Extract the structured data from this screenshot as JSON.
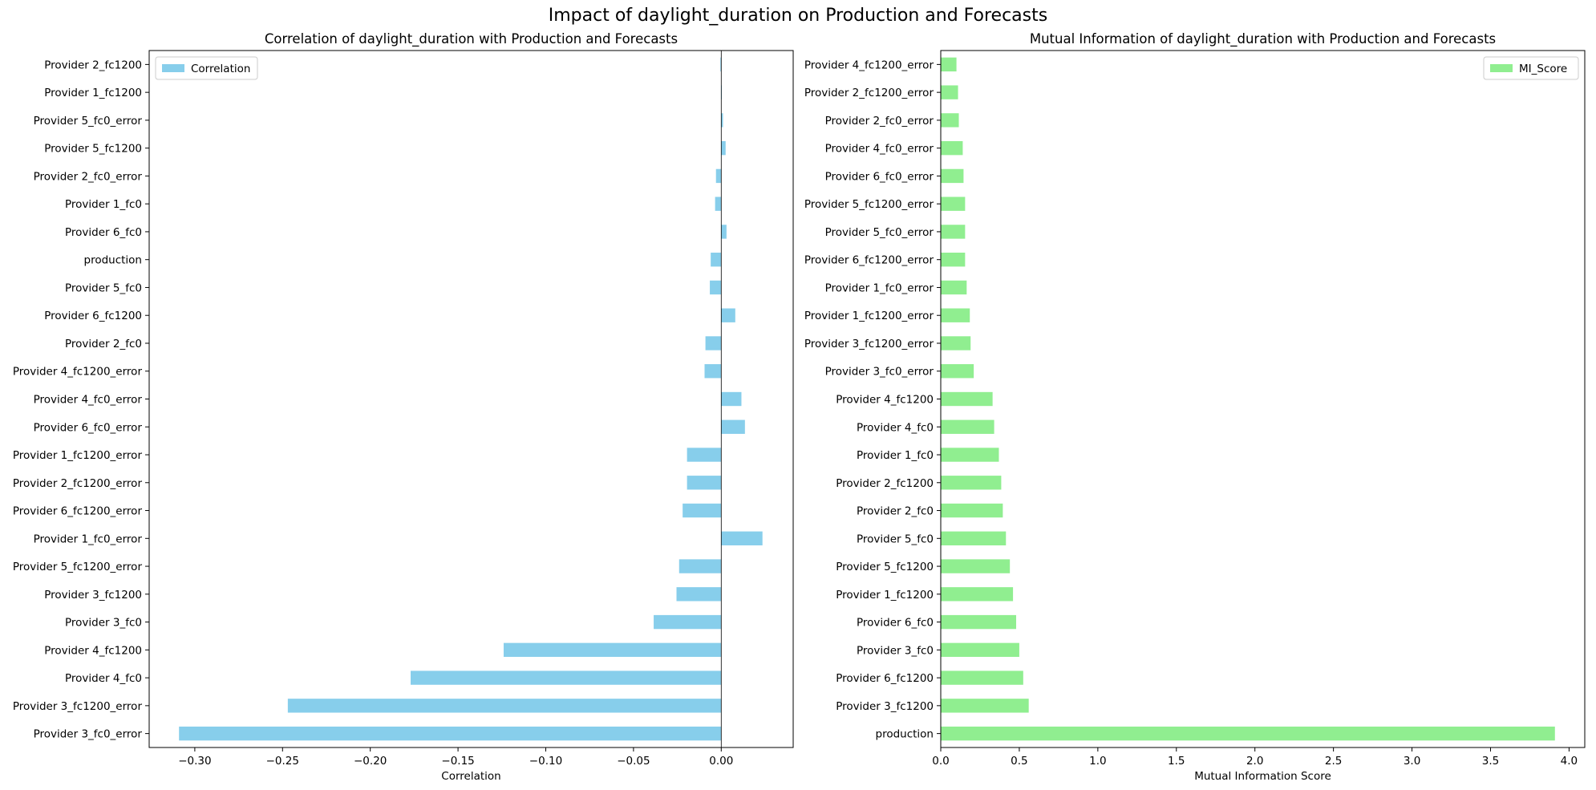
{
  "suptitle": "Impact of daylight_duration on Production and Forecasts",
  "chart_data": [
    {
      "type": "bar",
      "orientation": "horizontal",
      "title": "Correlation of daylight_duration with Production and Forecasts",
      "xlabel": "Correlation",
      "ylabel": "",
      "xlim": [
        -0.326,
        0.041
      ],
      "xticks": [
        -0.3,
        -0.25,
        -0.2,
        -0.15,
        -0.1,
        -0.05,
        0.0
      ],
      "xtick_labels": [
        "−0.30",
        "−0.25",
        "−0.20",
        "−0.15",
        "−0.10",
        "−0.05",
        "0.00"
      ],
      "legend": {
        "placement": "upper left",
        "entries": [
          {
            "label": "Correlation",
            "color": "#87ceeb"
          }
        ]
      },
      "grid": false,
      "color": "#87ceeb",
      "categories": [
        "Provider 2_fc1200",
        "Provider 1_fc1200",
        "Provider 5_fc0_error",
        "Provider 5_fc1200",
        "Provider 2_fc0_error",
        "Provider 1_fc0",
        "Provider 6_fc0",
        "production",
        "Provider 5_fc0",
        "Provider 6_fc1200",
        "Provider 2_fc0",
        "Provider 4_fc1200_error",
        "Provider 4_fc0_error",
        "Provider 6_fc0_error",
        "Provider 1_fc1200_error",
        "Provider 2_fc1200_error",
        "Provider 6_fc1200_error",
        "Provider 1_fc0_error",
        "Provider 5_fc1200_error",
        "Provider 3_fc1200",
        "Provider 3_fc0",
        "Provider 4_fc1200",
        "Provider 4_fc0",
        "Provider 3_fc1200_error",
        "Provider 3_fc0_error"
      ],
      "series": [
        {
          "name": "Correlation",
          "values": [
            -0.0005,
            0.0002,
            0.001,
            0.0025,
            -0.003,
            -0.0035,
            0.003,
            -0.006,
            -0.0065,
            0.008,
            -0.009,
            -0.0095,
            0.0115,
            0.0135,
            -0.0195,
            -0.0195,
            -0.022,
            0.0235,
            -0.024,
            -0.0255,
            -0.0385,
            -0.124,
            -0.177,
            -0.247,
            -0.309
          ]
        }
      ]
    },
    {
      "type": "bar",
      "orientation": "horizontal",
      "title": "Mutual Information of daylight_duration with Production and Forecasts",
      "xlabel": "Mutual Information Score",
      "ylabel": "",
      "xlim": [
        0,
        4.1
      ],
      "xticks": [
        0.0,
        0.5,
        1.0,
        1.5,
        2.0,
        2.5,
        3.0,
        3.5,
        4.0
      ],
      "xtick_labels": [
        "0.0",
        "0.5",
        "1.0",
        "1.5",
        "2.0",
        "2.5",
        "3.0",
        "3.5",
        "4.0"
      ],
      "legend": {
        "placement": "upper right",
        "entries": [
          {
            "label": "MI_Score",
            "color": "#90ee90"
          }
        ]
      },
      "grid": false,
      "color": "#90ee90",
      "categories": [
        "Provider 4_fc1200_error",
        "Provider 2_fc1200_error",
        "Provider 2_fc0_error",
        "Provider 4_fc0_error",
        "Provider 6_fc0_error",
        "Provider 5_fc1200_error",
        "Provider 5_fc0_error",
        "Provider 6_fc1200_error",
        "Provider 1_fc0_error",
        "Provider 1_fc1200_error",
        "Provider 3_fc1200_error",
        "Provider 3_fc0_error",
        "Provider 4_fc1200",
        "Provider 4_fc0",
        "Provider 1_fc0",
        "Provider 2_fc1200",
        "Provider 2_fc0",
        "Provider 5_fc0",
        "Provider 5_fc1200",
        "Provider 1_fc1200",
        "Provider 6_fc0",
        "Provider 3_fc0",
        "Provider 6_fc1200",
        "Provider 3_fc1200",
        "production"
      ],
      "series": [
        {
          "name": "MI_Score",
          "values": [
            0.1,
            0.11,
            0.115,
            0.14,
            0.145,
            0.155,
            0.155,
            0.155,
            0.165,
            0.185,
            0.19,
            0.21,
            0.33,
            0.34,
            0.37,
            0.385,
            0.395,
            0.415,
            0.44,
            0.46,
            0.48,
            0.5,
            0.525,
            0.56,
            3.91
          ]
        }
      ]
    }
  ]
}
